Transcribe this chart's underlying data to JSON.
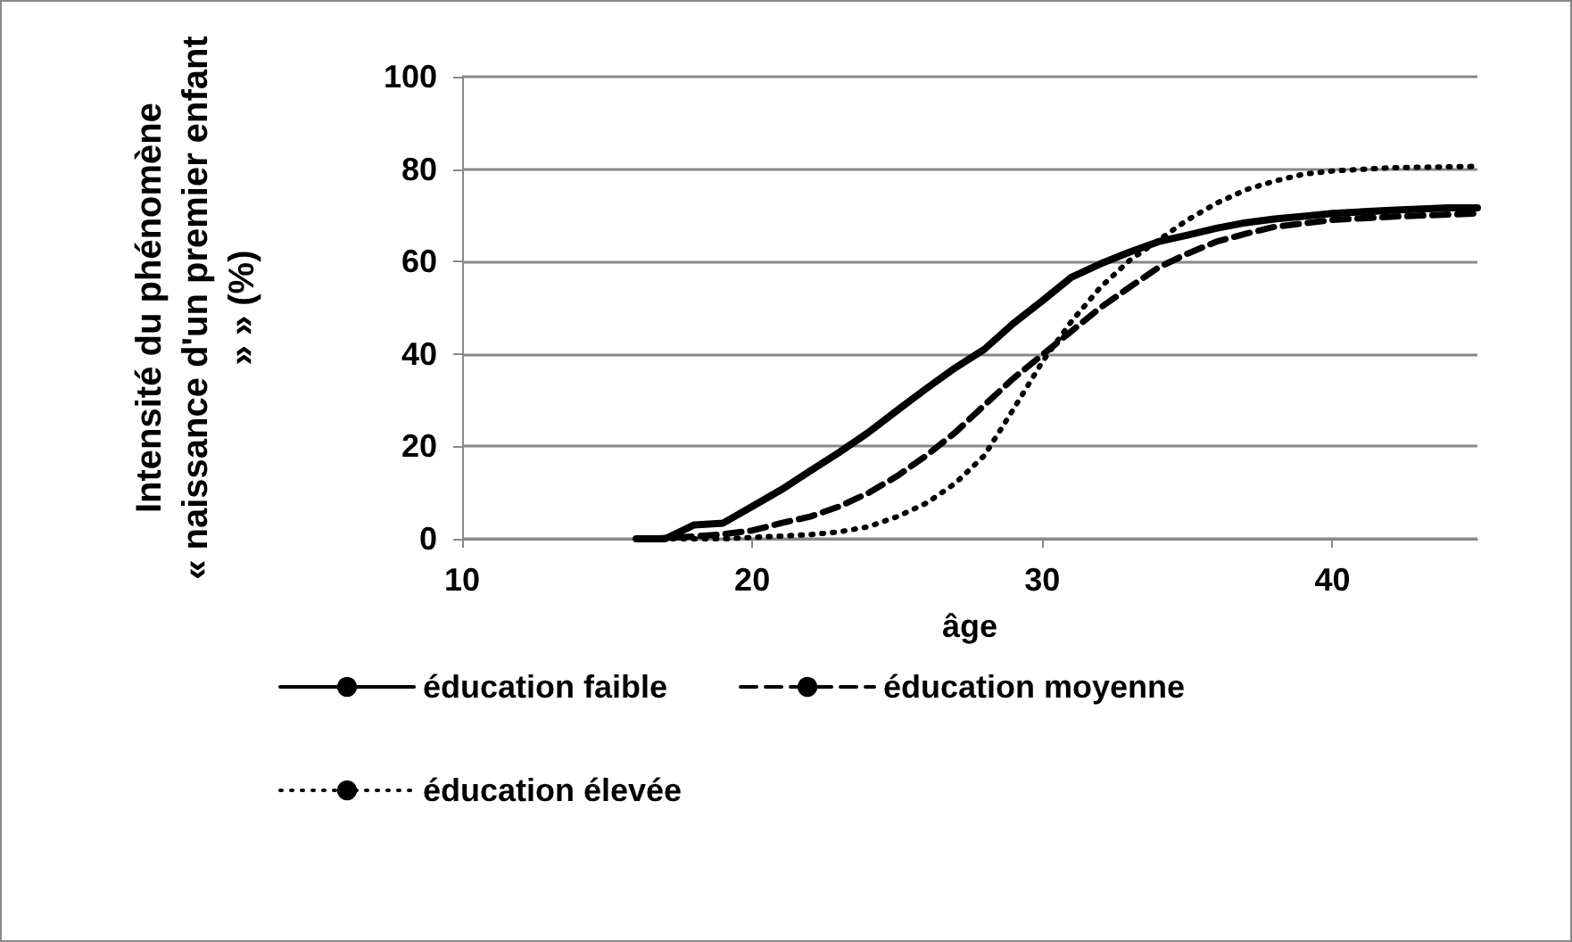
{
  "chart_data": {
    "type": "line",
    "xlabel": "âge",
    "ylabel": "Intensité du phénomène\n« naissance d'un premier enfant\n» » (%)",
    "xlim": [
      10,
      45
    ],
    "xticks": [
      10,
      20,
      30,
      40
    ],
    "ylim": [
      0,
      100
    ],
    "yticks": [
      0,
      20,
      40,
      60,
      80,
      100
    ],
    "grid": "y",
    "legend": "bottom",
    "marker": "none",
    "series": [
      {
        "name": "éducation faible",
        "color": "#000000",
        "line_style": "solid",
        "x": [
          16,
          17,
          18,
          19,
          20,
          21,
          22,
          23,
          24,
          25,
          26,
          27,
          28,
          29,
          30,
          31,
          32,
          33,
          34,
          35,
          36,
          37,
          38,
          39,
          40,
          42,
          44,
          45
        ],
        "values": [
          0,
          0,
          3,
          3.4,
          7,
          10.6,
          14.7,
          18.7,
          23,
          27.8,
          32.5,
          37,
          41,
          46.6,
          51.5,
          56.6,
          59.5,
          62,
          64.3,
          65.7,
          67.2,
          68.4,
          69.2,
          69.8,
          70.4,
          71.1,
          71.6,
          71.6
        ]
      },
      {
        "name": "éducation moyenne",
        "color": "#000000",
        "line_style": "dashed",
        "x": [
          16.5,
          18,
          19,
          20,
          21,
          22,
          23,
          24,
          25,
          26,
          27,
          28,
          29,
          30,
          31,
          32,
          33,
          34,
          35,
          36,
          37,
          38,
          40,
          42,
          45
        ],
        "values": [
          0,
          0.5,
          1,
          1.8,
          3.4,
          4.8,
          7,
          9.9,
          13.6,
          18,
          23,
          28.9,
          34.7,
          39.8,
          44.9,
          50,
          54.4,
          58.7,
          61.7,
          64.3,
          66,
          67.5,
          69,
          69.7,
          70.4
        ]
      },
      {
        "name": "éducation élevée",
        "color": "#000000",
        "line_style": "dotted",
        "x": [
          16.5,
          19,
          20,
          22,
          23,
          24,
          25,
          26,
          27,
          28,
          29,
          30,
          31,
          32,
          33,
          34,
          35,
          36,
          37,
          38,
          39,
          40,
          42,
          45
        ],
        "values": [
          0,
          0,
          0.3,
          0.9,
          1.5,
          2.6,
          4.8,
          7.7,
          12,
          18,
          28,
          38.3,
          47,
          54.4,
          60.2,
          64.6,
          69,
          72.6,
          75.5,
          77.4,
          78.9,
          79.6,
          80.3,
          80.6
        ]
      }
    ]
  }
}
